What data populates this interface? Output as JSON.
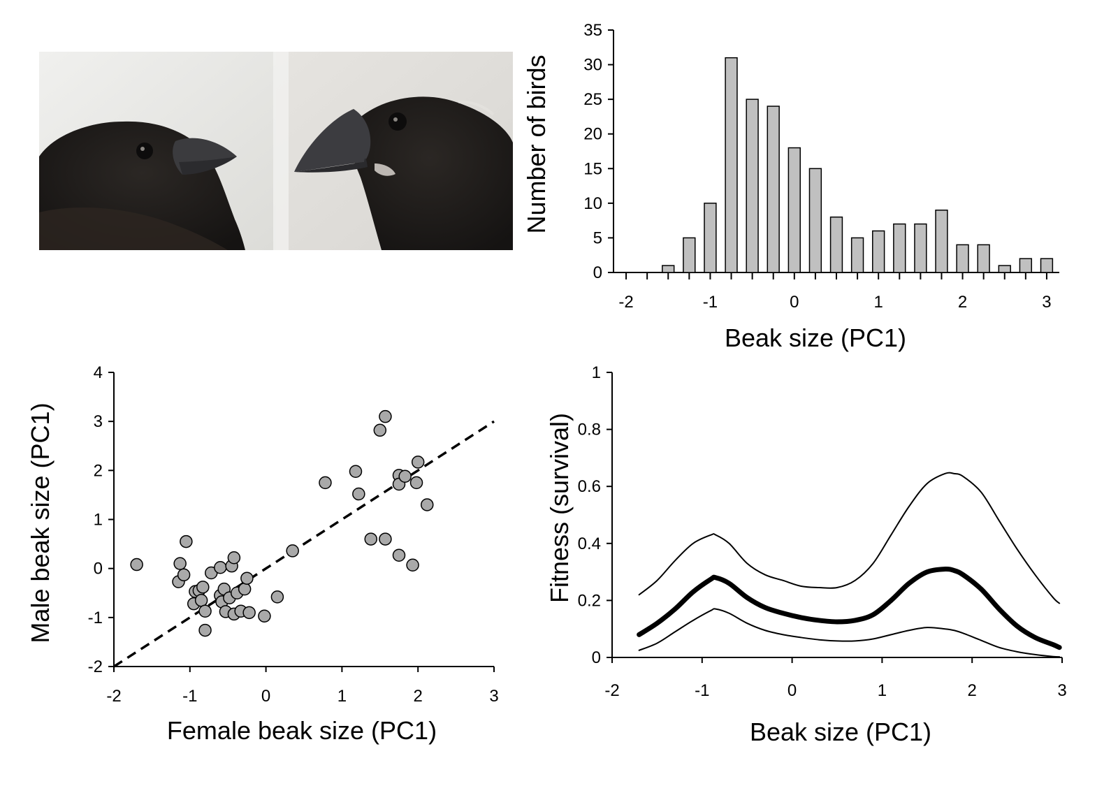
{
  "colors": {
    "bar_fill": "#c0c0c0",
    "marker_fill": "#a9a9a9",
    "stroke": "#000000",
    "photo_bg_left": "#e9e9e6",
    "photo_bg_right": "#e2e1dd",
    "bird_plumage": "#1c1a18",
    "beak": "#3a3a3c"
  },
  "photo": {
    "description_icons": [
      "finch-small-beak-icon",
      "finch-large-beak-icon"
    ]
  },
  "chart_data": [
    {
      "id": "histogram",
      "type": "bar",
      "title": "",
      "xlabel": "Beak size (PC1)",
      "ylabel": "Number of birds",
      "xlim": [
        -2.15,
        3.15
      ],
      "ylim": [
        0,
        35
      ],
      "xticks": [
        -2,
        -1,
        0,
        1,
        2,
        3
      ],
      "yticks": [
        0,
        5,
        10,
        15,
        20,
        25,
        30,
        35
      ],
      "bin_width": 0.25,
      "bins": [
        {
          "x": -1.5,
          "value": 1
        },
        {
          "x": -1.25,
          "value": 5
        },
        {
          "x": -1.0,
          "value": 10
        },
        {
          "x": -0.75,
          "value": 31
        },
        {
          "x": -0.5,
          "value": 25
        },
        {
          "x": -0.25,
          "value": 24
        },
        {
          "x": 0.0,
          "value": 18
        },
        {
          "x": 0.25,
          "value": 15
        },
        {
          "x": 0.5,
          "value": 8
        },
        {
          "x": 0.75,
          "value": 5
        },
        {
          "x": 1.0,
          "value": 6
        },
        {
          "x": 1.25,
          "value": 7
        },
        {
          "x": 1.5,
          "value": 7
        },
        {
          "x": 1.75,
          "value": 9
        },
        {
          "x": 2.0,
          "value": 4
        },
        {
          "x": 2.25,
          "value": 4
        },
        {
          "x": 2.5,
          "value": 1
        },
        {
          "x": 2.75,
          "value": 2
        },
        {
          "x": 3.0,
          "value": 2
        }
      ]
    },
    {
      "id": "scatter",
      "type": "scatter",
      "title": "",
      "xlabel": "Female beak size (PC1)",
      "ylabel": "Male beak size (PC1)",
      "xlim": [
        -2,
        3
      ],
      "ylim": [
        -2,
        4
      ],
      "xticks": [
        -2,
        -1,
        0,
        1,
        2,
        3
      ],
      "yticks": [
        -2,
        -1,
        0,
        1,
        2,
        3,
        4
      ],
      "reference_line": {
        "style": "dashed",
        "from": [
          -2,
          -2
        ],
        "to": [
          3,
          3
        ]
      },
      "points": [
        {
          "x": -1.7,
          "y": 0.08
        },
        {
          "x": -1.05,
          "y": 0.55
        },
        {
          "x": -1.13,
          "y": 0.1
        },
        {
          "x": -1.15,
          "y": -0.27
        },
        {
          "x": -1.08,
          "y": -0.13
        },
        {
          "x": -0.95,
          "y": -0.72
        },
        {
          "x": -0.93,
          "y": -0.47
        },
        {
          "x": -0.88,
          "y": -0.45
        },
        {
          "x": -0.85,
          "y": -0.65
        },
        {
          "x": -0.83,
          "y": -0.38
        },
        {
          "x": -0.8,
          "y": -0.87
        },
        {
          "x": -0.8,
          "y": -1.26
        },
        {
          "x": -0.72,
          "y": -0.09
        },
        {
          "x": -0.6,
          "y": 0.02
        },
        {
          "x": -0.6,
          "y": -0.55
        },
        {
          "x": -0.58,
          "y": -0.68
        },
        {
          "x": -0.55,
          "y": -0.42
        },
        {
          "x": -0.53,
          "y": -0.88
        },
        {
          "x": -0.48,
          "y": -0.6
        },
        {
          "x": -0.45,
          "y": 0.05
        },
        {
          "x": -0.42,
          "y": 0.22
        },
        {
          "x": -0.42,
          "y": -0.93
        },
        {
          "x": -0.38,
          "y": -0.5
        },
        {
          "x": -0.33,
          "y": -0.87
        },
        {
          "x": -0.28,
          "y": -0.42
        },
        {
          "x": -0.25,
          "y": -0.2
        },
        {
          "x": -0.22,
          "y": -0.9
        },
        {
          "x": -0.02,
          "y": -0.97
        },
        {
          "x": 0.15,
          "y": -0.58
        },
        {
          "x": 0.35,
          "y": 0.36
        },
        {
          "x": 0.78,
          "y": 1.75
        },
        {
          "x": 1.18,
          "y": 1.98
        },
        {
          "x": 1.22,
          "y": 1.52
        },
        {
          "x": 1.38,
          "y": 0.6
        },
        {
          "x": 1.5,
          "y": 2.82
        },
        {
          "x": 1.57,
          "y": 3.1
        },
        {
          "x": 1.57,
          "y": 0.6
        },
        {
          "x": 1.75,
          "y": 1.9
        },
        {
          "x": 1.75,
          "y": 1.72
        },
        {
          "x": 1.75,
          "y": 0.27
        },
        {
          "x": 1.83,
          "y": 1.88
        },
        {
          "x": 1.93,
          "y": 0.07
        },
        {
          "x": 1.98,
          "y": 1.75
        },
        {
          "x": 2.0,
          "y": 2.17
        },
        {
          "x": 2.12,
          "y": 1.3
        }
      ]
    },
    {
      "id": "fitness",
      "type": "line",
      "title": "",
      "xlabel": "Beak size (PC1)",
      "ylabel": "Fitness (survival)",
      "xlim": [
        -2,
        3
      ],
      "ylim": [
        0,
        1
      ],
      "xticks": [
        -2,
        -1,
        0,
        1,
        2,
        3
      ],
      "yticks": [
        0,
        0.2,
        0.4,
        0.6,
        0.8,
        1
      ],
      "x": [
        -1.7,
        -1.5,
        -1.3,
        -1.1,
        -0.9,
        -0.85,
        -0.7,
        -0.5,
        -0.3,
        -0.1,
        0.1,
        0.3,
        0.5,
        0.7,
        0.9,
        1.1,
        1.3,
        1.5,
        1.7,
        1.8,
        1.9,
        2.1,
        2.3,
        2.5,
        2.7,
        2.9,
        2.97
      ],
      "series": [
        {
          "role": "upper",
          "width": "thin",
          "values": [
            0.22,
            0.27,
            0.34,
            0.4,
            0.43,
            0.43,
            0.4,
            0.33,
            0.29,
            0.27,
            0.25,
            0.245,
            0.245,
            0.27,
            0.33,
            0.43,
            0.53,
            0.61,
            0.645,
            0.645,
            0.635,
            0.58,
            0.48,
            0.38,
            0.29,
            0.21,
            0.19
          ]
        },
        {
          "role": "estimate",
          "width": "thick",
          "values": [
            0.08,
            0.12,
            0.17,
            0.23,
            0.275,
            0.28,
            0.26,
            0.21,
            0.175,
            0.155,
            0.14,
            0.13,
            0.125,
            0.13,
            0.15,
            0.2,
            0.26,
            0.3,
            0.31,
            0.305,
            0.29,
            0.24,
            0.17,
            0.11,
            0.07,
            0.045,
            0.035
          ]
        },
        {
          "role": "lower",
          "width": "thin",
          "values": [
            0.025,
            0.05,
            0.09,
            0.13,
            0.165,
            0.17,
            0.155,
            0.12,
            0.095,
            0.08,
            0.07,
            0.062,
            0.058,
            0.058,
            0.065,
            0.08,
            0.095,
            0.105,
            0.1,
            0.095,
            0.085,
            0.06,
            0.035,
            0.02,
            0.01,
            0.003,
            0.002
          ]
        }
      ]
    }
  ]
}
